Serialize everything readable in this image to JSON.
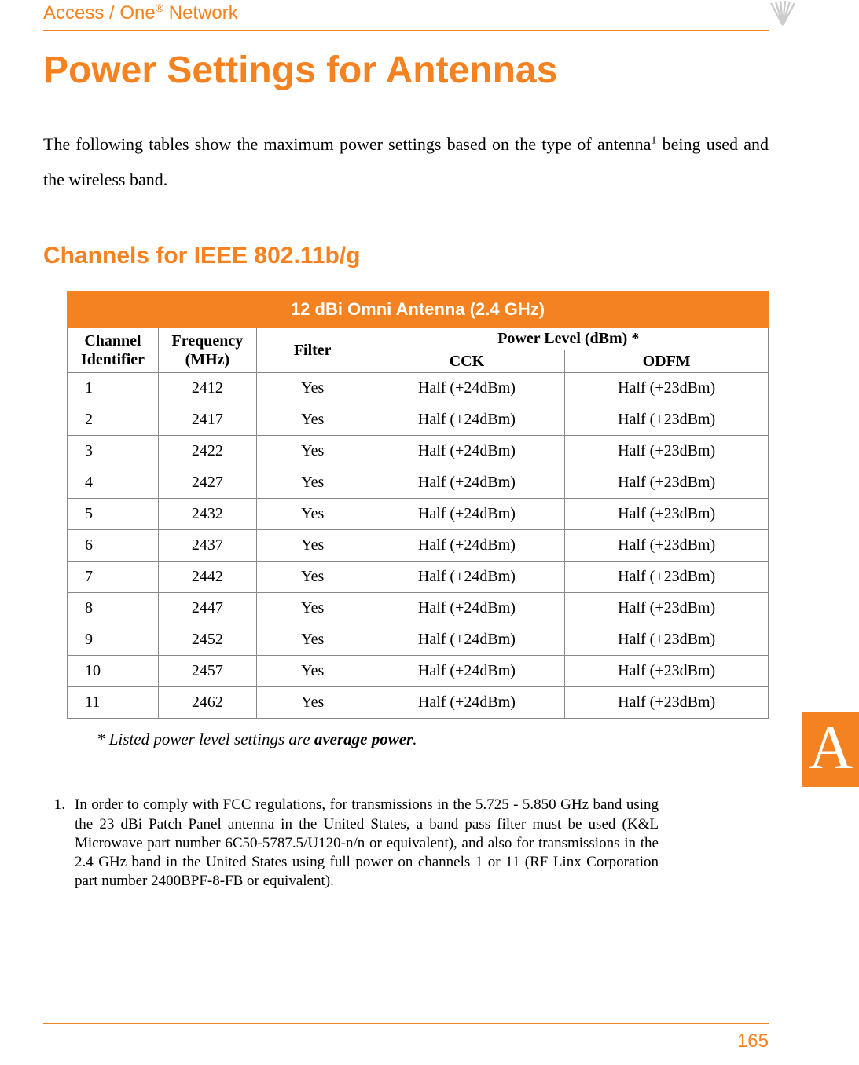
{
  "header": {
    "product_line": "Access / One",
    "product_suffix": " Network",
    "registered_mark": "®"
  },
  "title": "Power Settings for Antennas",
  "intro": {
    "part1": "The following tables show the maximum power settings based on the type of antenna",
    "footref": "1",
    "part2": " being used and the wireless band."
  },
  "section_title": "Channels for IEEE 802.11b/g",
  "table": {
    "title": "12 dBi Omni Antenna (2.4 GHz)",
    "col_channel": "Channel Identifier",
    "col_freq": "Frequency (MHz)",
    "col_filter": "Filter",
    "col_power": "Power Level (dBm) *",
    "col_cck": "CCK",
    "col_odfm": "ODFM",
    "rows": [
      {
        "ch": "1",
        "freq": "2412",
        "filter": "Yes",
        "cck": "Half (+24dBm)",
        "odfm": "Half (+23dBm)"
      },
      {
        "ch": "2",
        "freq": "2417",
        "filter": "Yes",
        "cck": "Half (+24dBm)",
        "odfm": "Half (+23dBm)"
      },
      {
        "ch": "3",
        "freq": "2422",
        "filter": "Yes",
        "cck": "Half (+24dBm)",
        "odfm": "Half (+23dBm)"
      },
      {
        "ch": "4",
        "freq": "2427",
        "filter": "Yes",
        "cck": "Half (+24dBm)",
        "odfm": "Half (+23dBm)"
      },
      {
        "ch": "5",
        "freq": "2432",
        "filter": "Yes",
        "cck": "Half (+24dBm)",
        "odfm": "Half (+23dBm)"
      },
      {
        "ch": "6",
        "freq": "2437",
        "filter": "Yes",
        "cck": "Half (+24dBm)",
        "odfm": "Half (+23dBm)"
      },
      {
        "ch": "7",
        "freq": "2442",
        "filter": "Yes",
        "cck": "Half (+24dBm)",
        "odfm": "Half (+23dBm)"
      },
      {
        "ch": "8",
        "freq": "2447",
        "filter": "Yes",
        "cck": "Half (+24dBm)",
        "odfm": "Half (+23dBm)"
      },
      {
        "ch": "9",
        "freq": "2452",
        "filter": "Yes",
        "cck": "Half (+24dBm)",
        "odfm": "Half (+23dBm)"
      },
      {
        "ch": "10",
        "freq": "2457",
        "filter": "Yes",
        "cck": "Half (+24dBm)",
        "odfm": "Half (+23dBm)"
      },
      {
        "ch": "11",
        "freq": "2462",
        "filter": "Yes",
        "cck": "Half (+24dBm)",
        "odfm": "Half (+23dBm)"
      }
    ]
  },
  "footnote_star": {
    "prefix": "* Listed power level settings are ",
    "bold": "average power",
    "suffix": "."
  },
  "footnote": {
    "num": "1.",
    "text": "In order to comply with FCC regulations, for transmissions in the 5.725 - 5.850 GHz band using the 23 dBi Patch Panel antenna in the United States, a band pass filter must be used (K&L Microwave part number 6C50-5787.5/U120-n/n or equivalent), and also for transmissions in the 2.4 GHz band in the United States using full power on channels 1 or 11 (RF Linx Corporation part number 2400BPF-8-FB or equivalent)."
  },
  "side_tab": "A",
  "page_number": "165",
  "colors": {
    "accent": "#f58220",
    "text": "#000000",
    "border": "#888888",
    "background": "#ffffff"
  },
  "logo": {
    "stroke": "#cccccc",
    "name": "wifi-signal-icon"
  }
}
